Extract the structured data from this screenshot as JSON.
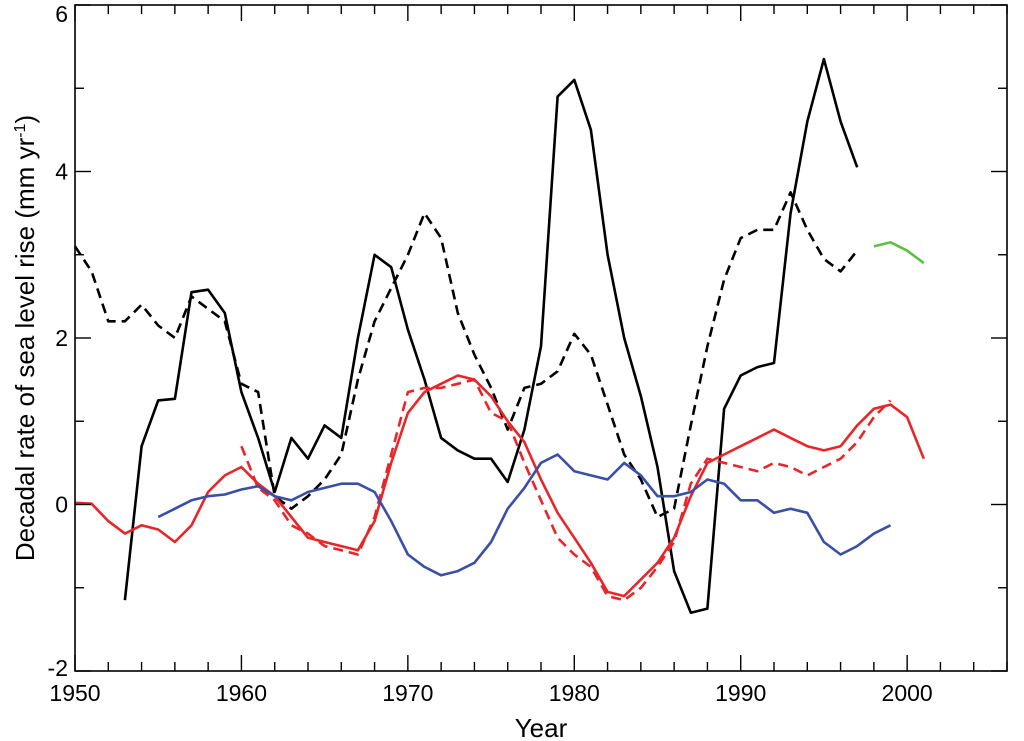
{
  "chart_data": {
    "type": "line",
    "xlabel": "Year",
    "ylabel": "Decadal rate of sea level rise (mm yr",
    "ylabel_superscript": "-1",
    "ylabel_suffix": ")",
    "xlim": [
      1950,
      2006
    ],
    "ylim": [
      -2,
      6
    ],
    "x_ticks": [
      1950,
      1960,
      1970,
      1980,
      1990,
      2000
    ],
    "x_tick_labels": [
      "1950",
      "1960",
      "1970",
      "1980",
      "1990",
      "2000"
    ],
    "x_minor_step": 2,
    "y_ticks": [
      -2,
      0,
      2,
      4,
      6
    ],
    "y_tick_labels": [
      "-2",
      "0",
      "2",
      "4",
      "6"
    ],
    "y_minor_step": 1,
    "grid": false,
    "legend": "none",
    "series": [
      {
        "color": "#000000",
        "dash": "solid",
        "x": [
          1953,
          1954,
          1955,
          1956,
          1957,
          1958,
          1959,
          1960,
          1961,
          1962,
          1963,
          1964,
          1965,
          1966,
          1967,
          1968,
          1969,
          1970,
          1971,
          1972,
          1973,
          1974,
          1975,
          1976,
          1977,
          1978,
          1979,
          1980,
          1981,
          1982,
          1983,
          1984,
          1985,
          1986,
          1987,
          1988,
          1989,
          1990,
          1991,
          1992,
          1993,
          1994,
          1995,
          1996,
          1997
        ],
        "y": [
          -1.15,
          0.7,
          1.25,
          1.27,
          2.55,
          2.58,
          2.3,
          1.35,
          0.8,
          0.15,
          0.8,
          0.55,
          0.95,
          0.8,
          2.0,
          3.0,
          2.85,
          2.1,
          1.5,
          0.8,
          0.65,
          0.55,
          0.55,
          0.27,
          0.9,
          1.9,
          4.9,
          5.1,
          4.5,
          3.0,
          2.0,
          1.3,
          0.45,
          -0.8,
          -1.3,
          -1.25,
          1.15,
          1.55,
          1.65,
          1.7,
          3.5,
          4.6,
          5.35,
          4.6,
          4.05
        ]
      },
      {
        "color": "#000000",
        "dash": "dashed",
        "x": [
          1950,
          1951,
          1952,
          1953,
          1954,
          1955,
          1956,
          1957,
          1958,
          1959,
          1960,
          1961,
          1962,
          1963,
          1964,
          1965,
          1966,
          1967,
          1968,
          1969,
          1970,
          1971,
          1972,
          1973,
          1974,
          1975,
          1976,
          1977,
          1978,
          1979,
          1980,
          1981,
          1982,
          1983,
          1984,
          1985,
          1986,
          1987,
          1988,
          1989,
          1990,
          1991,
          1992,
          1993,
          1994,
          1995,
          1996,
          1997
        ],
        "y": [
          3.1,
          2.8,
          2.2,
          2.2,
          2.4,
          2.15,
          2.0,
          2.5,
          2.35,
          2.2,
          1.45,
          1.35,
          0.1,
          -0.05,
          0.1,
          0.3,
          0.6,
          1.5,
          2.2,
          2.6,
          3.0,
          3.5,
          3.2,
          2.3,
          1.8,
          1.4,
          0.9,
          1.4,
          1.45,
          1.6,
          2.05,
          1.8,
          1.2,
          0.6,
          0.3,
          -0.15,
          -0.05,
          0.95,
          1.9,
          2.7,
          3.2,
          3.3,
          3.3,
          3.75,
          3.3,
          2.95,
          2.8,
          3.05
        ]
      },
      {
        "color": "#e8262a",
        "dash": "solid",
        "x": [
          1950,
          1951,
          1952,
          1953,
          1954,
          1955,
          1956,
          1957,
          1958,
          1959,
          1960,
          1961,
          1962,
          1963,
          1964,
          1965,
          1966,
          1967,
          1968,
          1969,
          1970,
          1971,
          1972,
          1973,
          1974,
          1975,
          1976,
          1977,
          1978,
          1979,
          1980,
          1981,
          1982,
          1983,
          1984,
          1985,
          1986,
          1987,
          1988,
          1989,
          1990,
          1991,
          1992,
          1993,
          1994,
          1995,
          1996,
          1997,
          1998,
          1999,
          2000,
          2001
        ],
        "y": [
          0.02,
          0.01,
          -0.2,
          -0.35,
          -0.25,
          -0.3,
          -0.45,
          -0.25,
          0.15,
          0.35,
          0.45,
          0.25,
          0.1,
          -0.15,
          -0.4,
          -0.45,
          -0.5,
          -0.55,
          -0.2,
          0.5,
          1.1,
          1.35,
          1.45,
          1.55,
          1.5,
          1.3,
          1.0,
          0.75,
          0.3,
          -0.1,
          -0.4,
          -0.7,
          -1.05,
          -1.1,
          -0.9,
          -0.7,
          -0.4,
          0.1,
          0.5,
          0.6,
          0.7,
          0.8,
          0.9,
          0.8,
          0.7,
          0.65,
          0.7,
          0.95,
          1.15,
          1.2,
          1.05,
          0.55
        ]
      },
      {
        "color": "#e8262a",
        "dash": "dashed",
        "x": [
          1960,
          1961,
          1962,
          1963,
          1964,
          1965,
          1966,
          1967,
          1968,
          1969,
          1970,
          1971,
          1972,
          1973,
          1974,
          1975,
          1976,
          1977,
          1978,
          1979,
          1980,
          1981,
          1982,
          1983,
          1984,
          1985,
          1986,
          1987,
          1988,
          1989,
          1990,
          1991,
          1992,
          1993,
          1994,
          1995,
          1996,
          1997,
          1998,
          1999
        ],
        "y": [
          0.7,
          0.2,
          0.05,
          -0.25,
          -0.35,
          -0.5,
          -0.55,
          -0.6,
          -0.15,
          0.6,
          1.35,
          1.4,
          1.4,
          1.45,
          1.5,
          1.1,
          1.0,
          0.5,
          0.05,
          -0.4,
          -0.6,
          -0.75,
          -1.1,
          -1.15,
          -1.0,
          -0.75,
          -0.45,
          0.25,
          0.55,
          0.5,
          0.45,
          0.4,
          0.5,
          0.45,
          0.35,
          0.45,
          0.55,
          0.75,
          1.05,
          1.25
        ]
      },
      {
        "color": "#3a4fa8",
        "dash": "solid",
        "x": [
          1955,
          1956,
          1957,
          1958,
          1959,
          1960,
          1961,
          1962,
          1963,
          1964,
          1965,
          1966,
          1967,
          1968,
          1969,
          1970,
          1971,
          1972,
          1973,
          1974,
          1975,
          1976,
          1977,
          1978,
          1979,
          1980,
          1981,
          1982,
          1983,
          1984,
          1985,
          1986,
          1987,
          1988,
          1989,
          1990,
          1991,
          1992,
          1993,
          1994,
          1995,
          1996,
          1997,
          1998,
          1999
        ],
        "y": [
          -0.15,
          -0.05,
          0.05,
          0.1,
          0.12,
          0.18,
          0.22,
          0.1,
          0.05,
          0.15,
          0.2,
          0.25,
          0.25,
          0.15,
          -0.2,
          -0.6,
          -0.75,
          -0.85,
          -0.8,
          -0.7,
          -0.45,
          -0.05,
          0.2,
          0.5,
          0.6,
          0.4,
          0.35,
          0.3,
          0.5,
          0.35,
          0.1,
          0.1,
          0.15,
          0.3,
          0.25,
          0.05,
          0.05,
          -0.1,
          -0.05,
          -0.1,
          -0.45,
          -0.6,
          -0.5,
          -0.35,
          -0.25
        ]
      },
      {
        "color": "#5dc043",
        "dash": "solid",
        "x": [
          1998,
          1999,
          2000,
          2001
        ],
        "y": [
          3.1,
          3.15,
          3.05,
          2.9
        ]
      }
    ]
  }
}
